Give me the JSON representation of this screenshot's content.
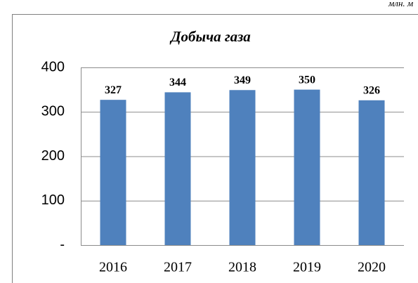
{
  "chart_data": {
    "type": "bar",
    "title": "Добыча газа",
    "unit": "млн. м",
    "categories": [
      "2016",
      "2017",
      "2018",
      "2019",
      "2020"
    ],
    "values": [
      327,
      344,
      349,
      350,
      326
    ],
    "color": "#4f81bd",
    "ylim": [
      0,
      400
    ],
    "yticks": [
      {
        "value": 0,
        "label": "-"
      },
      100,
      200,
      300,
      400
    ],
    "grid": true
  }
}
